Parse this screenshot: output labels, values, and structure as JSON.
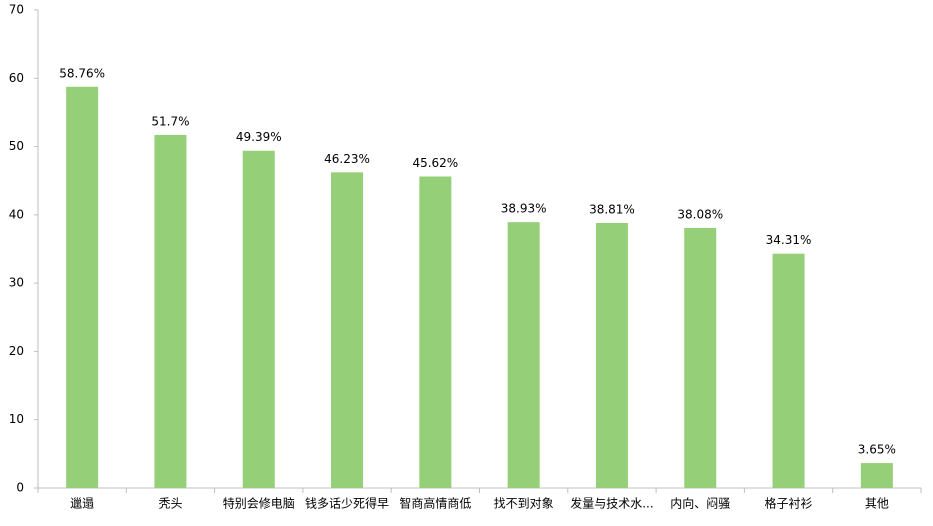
{
  "chart_data": {
    "type": "bar",
    "categories": [
      "邋遢",
      "秃头",
      "特别会修电脑",
      "钱多话少死得早",
      "智商高情商低",
      "找不到对象",
      "发量与技术水...",
      "内向、闷骚",
      "格子衬衫",
      "其他"
    ],
    "values": [
      58.76,
      51.7,
      49.39,
      46.23,
      45.62,
      38.93,
      38.81,
      38.08,
      34.31,
      3.65
    ],
    "value_labels": [
      "58.76%",
      "51.7%",
      "49.39%",
      "46.23%",
      "45.62%",
      "38.93%",
      "38.81%",
      "38.08%",
      "34.31%",
      "3.65%"
    ],
    "color": "#95cf77",
    "ylim": [
      0,
      70
    ],
    "yticks": [
      0,
      10,
      20,
      30,
      40,
      50,
      60,
      70
    ],
    "grid": false
  }
}
